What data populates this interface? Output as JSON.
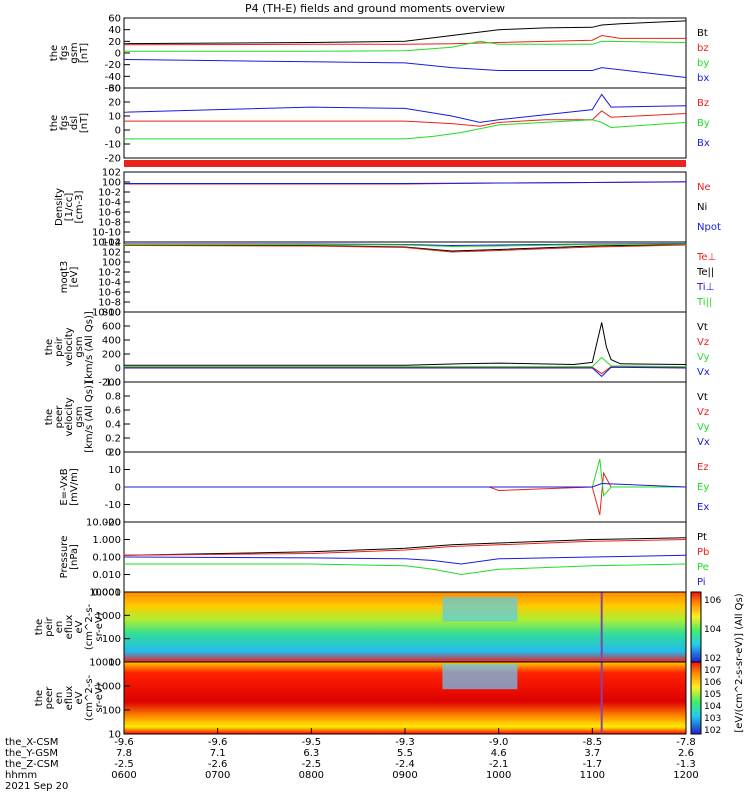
{
  "title": "P4 (TH-E) fields and ground moments overview",
  "date_label": "2021 Sep 20",
  "colors": {
    "black": "#000000",
    "red": "#e8231b",
    "green": "#22dd22",
    "blue": "#1a1adf"
  },
  "time_axis": {
    "ticks": [
      "0600",
      "0700",
      "0800",
      "0900",
      "1000",
      "1100",
      "1200"
    ],
    "rows": [
      {
        "label": "the_X-CSM",
        "values": [
          "-9.6",
          "-9.6",
          "-9.5",
          "-9.3",
          "-9.0",
          "-8.5",
          "-7.8"
        ]
      },
      {
        "label": "the_Y-GSM",
        "values": [
          "7.8",
          "7.1",
          "6.3",
          "5.5",
          "4.6",
          "3.7",
          "2.6"
        ]
      },
      {
        "label": "the_Z-CSM",
        "values": [
          "-2.5",
          "-2.6",
          "-2.5",
          "-2.4",
          "-2.1",
          "-1.7",
          "-1.3"
        ]
      },
      {
        "label": "hhmm",
        "values": [
          "0600",
          "0700",
          "0800",
          "0900",
          "1000",
          "1100",
          "1200"
        ]
      }
    ]
  },
  "colorbar": {
    "label": "[eV/(cm^2-s-sr-eV)] (All Qs)",
    "upper_ticks": [
      "10^6",
      "10^4",
      "10^2"
    ],
    "lower_ticks": [
      "10^7",
      "10^6",
      "10^5",
      "10^4",
      "10^3",
      "10^2"
    ]
  },
  "chart_data": [
    {
      "type": "line",
      "ylabel": [
        "the",
        "fgs",
        "gsm",
        "[nT]"
      ],
      "ylim": [
        -60,
        60
      ],
      "yticks": [
        "60",
        "40",
        "20",
        "0",
        "-20",
        "-40",
        "-60"
      ],
      "legend": [
        "Bt",
        "bz",
        "by",
        "bx"
      ],
      "series": [
        {
          "name": "Bt",
          "color": "black",
          "x": [
            6,
            8,
            9,
            9.5,
            10,
            10.5,
            11,
            11.1,
            11.3,
            12
          ],
          "y": [
            16,
            18,
            20,
            30,
            40,
            43,
            44,
            48,
            50,
            55
          ]
        },
        {
          "name": "bz",
          "color": "red",
          "x": [
            6,
            8,
            9,
            9.5,
            10,
            11,
            11.1,
            11.3,
            12
          ],
          "y": [
            14,
            15,
            15,
            16,
            18,
            22,
            30,
            25,
            25
          ]
        },
        {
          "name": "by",
          "color": "green",
          "x": [
            6,
            8,
            9,
            9.5,
            9.8,
            10,
            11,
            11.1,
            12
          ],
          "y": [
            3,
            3,
            4,
            10,
            20,
            15,
            15,
            20,
            18
          ]
        },
        {
          "name": "bx",
          "color": "blue",
          "x": [
            6,
            7,
            8,
            9,
            9.5,
            10,
            11,
            11.1,
            12
          ],
          "y": [
            -11,
            -13,
            -15,
            -17,
            -25,
            -30,
            -30,
            -25,
            -42
          ]
        }
      ]
    },
    {
      "type": "line",
      "ylabel": [
        "the",
        "fgs",
        "dsl",
        "[nT]"
      ],
      "ylim": [
        -25,
        30
      ],
      "yticks": [
        "30",
        "20",
        "10",
        "0",
        "-10",
        "-20"
      ],
      "legend": [
        "Bz",
        "By",
        "Bx"
      ],
      "series": [
        {
          "name": "Bz",
          "color": "red",
          "x": [
            6,
            8,
            9,
            9.5,
            9.8,
            10,
            10.5,
            11,
            11.1,
            11.2,
            12
          ],
          "y": [
            4,
            4,
            4,
            2,
            0,
            3,
            5,
            5,
            12,
            7,
            10
          ]
        },
        {
          "name": "By",
          "color": "green",
          "x": [
            6,
            8,
            9,
            9.3,
            9.6,
            9.8,
            10,
            11,
            11.1,
            11.2,
            12
          ],
          "y": [
            -10,
            -10,
            -10,
            -8,
            -5,
            -2,
            1,
            5,
            3,
            -1,
            3
          ]
        },
        {
          "name": "Bx",
          "color": "blue",
          "x": [
            6,
            7,
            8,
            9,
            9.5,
            9.8,
            10,
            11,
            11.1,
            11.2,
            12
          ],
          "y": [
            11,
            13,
            15,
            14,
            8,
            3,
            5,
            13,
            25,
            15,
            16
          ]
        }
      ]
    },
    {
      "type": "bar",
      "legend": [],
      "values": [
        1
      ]
    },
    {
      "type": "line",
      "ylabel": [
        "Density",
        "[1/cc]",
        "[cm-3]"
      ],
      "ylim": [
        -12,
        2
      ],
      "log": true,
      "yticks": [
        "10^2",
        "10^0",
        "10^-2",
        "10^-4",
        "10^-6",
        "10^-8",
        "10^-10",
        "10^-12"
      ],
      "legend": [
        "Ne",
        "Ni",
        "Npot"
      ],
      "series": [
        {
          "name": "Ne",
          "color": "red",
          "x": [
            6,
            9,
            10,
            11,
            12
          ],
          "y": [
            -0.4,
            -0.4,
            -0.2,
            -0.1,
            0.0
          ]
        },
        {
          "name": "Npot",
          "color": "blue",
          "x": [
            6,
            9,
            10,
            11,
            12
          ],
          "y": [
            -0.3,
            -0.3,
            -0.2,
            -0.1,
            0.05
          ]
        }
      ]
    },
    {
      "type": "line",
      "ylabel": [
        "moqt3",
        "[eV]"
      ],
      "ylim": [
        -10,
        4
      ],
      "log": true,
      "yticks": [
        "10^4",
        "10^2",
        "10^0",
        "10^-2",
        "10^-4",
        "10^-6",
        "10^-8",
        "10^-10"
      ],
      "legend": [
        "Te⊥",
        "Te||",
        "Ti⊥",
        "Ti||"
      ],
      "series": [
        {
          "name": "Te||",
          "color": "black",
          "x": [
            6,
            8,
            9,
            9.5,
            10,
            11,
            12
          ],
          "y": [
            3.4,
            3.3,
            3.0,
            2.2,
            2.5,
            3.2,
            3.5
          ]
        },
        {
          "name": "Ti⊥",
          "color": "blue",
          "x": [
            6,
            8,
            9,
            9.5,
            10,
            11,
            12
          ],
          "y": [
            3.6,
            3.6,
            3.5,
            3.3,
            3.4,
            3.6,
            3.7
          ]
        },
        {
          "name": "Te⊥",
          "color": "red",
          "x": [
            6,
            8,
            9,
            9.5,
            10,
            11,
            12
          ],
          "y": [
            3.3,
            3.2,
            2.9,
            2.0,
            2.3,
            3.0,
            3.4
          ]
        },
        {
          "name": "Ti||",
          "color": "green",
          "x": [
            6,
            8,
            9,
            9.5,
            10,
            11,
            12
          ],
          "y": [
            3.5,
            3.5,
            3.4,
            3.1,
            3.2,
            3.5,
            3.6
          ]
        }
      ]
    },
    {
      "type": "line",
      "ylabel": [
        "the",
        "peir",
        "velocity",
        "gsm",
        "[km/s (All Qs)]"
      ],
      "ylim": [
        -200,
        800
      ],
      "yticks": [
        "800",
        "600",
        "400",
        "200",
        "0",
        "-200"
      ],
      "legend": [
        "Vt",
        "Vz",
        "Vy",
        "Vx"
      ],
      "series": [
        {
          "name": "Vt",
          "color": "black",
          "x": [
            6,
            9,
            9.6,
            10,
            10.8,
            11,
            11.1,
            11.15,
            11.2,
            11.3,
            12
          ],
          "y": [
            40,
            40,
            60,
            70,
            50,
            80,
            650,
            300,
            120,
            60,
            50
          ]
        },
        {
          "name": "Vz",
          "color": "red",
          "x": [
            6,
            11,
            11.1,
            11.2,
            12
          ],
          "y": [
            10,
            10,
            -80,
            20,
            10
          ]
        },
        {
          "name": "Vy",
          "color": "green",
          "x": [
            6,
            11,
            11.1,
            11.2,
            12
          ],
          "y": [
            20,
            20,
            150,
            30,
            20
          ]
        },
        {
          "name": "Vx",
          "color": "blue",
          "x": [
            6,
            11,
            11.1,
            11.2,
            12
          ],
          "y": [
            0,
            0,
            -120,
            10,
            0
          ]
        }
      ]
    },
    {
      "type": "line",
      "ylabel": [
        "the",
        "peer",
        "velocity",
        "gsm",
        "[km/s (All Qs)]"
      ],
      "ylim": [
        0,
        1
      ],
      "yticks": [
        "1.0",
        "0.8",
        "0.6",
        "0.4",
        "0.2",
        "0.0"
      ],
      "legend": [
        "Vt",
        "Vz",
        "Vy",
        "Vx"
      ],
      "series": []
    },
    {
      "type": "line",
      "ylabel": [
        "E=-VxB",
        "[mV/m]"
      ],
      "ylim": [
        -20,
        20
      ],
      "yticks": [
        "20",
        "10",
        "0",
        "-10",
        "-20"
      ],
      "legend": [
        "Ez",
        "Ey",
        "Ex"
      ],
      "series": [
        {
          "name": "Ez",
          "color": "red",
          "x": [
            6,
            9.9,
            10,
            11,
            11.08,
            11.12,
            11.2,
            12
          ],
          "y": [
            0,
            0,
            -2,
            0,
            -16,
            8,
            0,
            0
          ]
        },
        {
          "name": "Ey",
          "color": "green",
          "x": [
            6,
            11,
            11.08,
            11.12,
            11.2,
            12
          ],
          "y": [
            0,
            0,
            16,
            -5,
            0,
            0
          ]
        },
        {
          "name": "Ex",
          "color": "blue",
          "x": [
            6,
            11,
            11.1,
            12
          ],
          "y": [
            0,
            0,
            2,
            0
          ]
        }
      ]
    },
    {
      "type": "line",
      "ylabel": [
        "Pressure",
        "[nPa]"
      ],
      "ylim": [
        -3,
        1
      ],
      "log": true,
      "yticks": [
        "10.000",
        "1.000",
        "0.100",
        "0.010",
        "0.001"
      ],
      "legend": [
        "Pt",
        "Pb",
        "Pe",
        "Pi"
      ],
      "series": [
        {
          "name": "Pt",
          "color": "black",
          "x": [
            6,
            8,
            9,
            9.5,
            10,
            11,
            12
          ],
          "y": [
            -0.9,
            -0.7,
            -0.5,
            -0.3,
            -0.2,
            0,
            0.1
          ]
        },
        {
          "name": "Pb",
          "color": "red",
          "x": [
            6,
            8,
            9,
            9.5,
            10,
            11,
            12
          ],
          "y": [
            -0.9,
            -0.8,
            -0.6,
            -0.4,
            -0.3,
            -0.1,
            0
          ]
        },
        {
          "name": "Pe",
          "color": "green",
          "x": [
            6,
            8,
            9,
            9.3,
            9.6,
            10,
            11,
            12
          ],
          "y": [
            -1.4,
            -1.4,
            -1.5,
            -1.7,
            -2.0,
            -1.7,
            -1.5,
            -1.4
          ]
        },
        {
          "name": "Pi",
          "color": "blue",
          "x": [
            6,
            8,
            9,
            9.3,
            9.6,
            10,
            11,
            12
          ],
          "y": [
            -1.0,
            -1.05,
            -1.1,
            -1.2,
            -1.4,
            -1.1,
            -1.0,
            -0.9
          ]
        }
      ]
    },
    {
      "type": "heatmap",
      "ylabel": [
        "the",
        "peir",
        "en",
        "eflux",
        "eV",
        "(cm^2-s-",
        "sr-eV)"
      ],
      "yticks": [
        "10000",
        "1000",
        "100",
        "10"
      ],
      "ylim": [
        1,
        4.3
      ],
      "log": true
    },
    {
      "type": "heatmap",
      "ylabel": [
        "the",
        "peer",
        "en",
        "eflux",
        "eV",
        "(cm^2-s-",
        "sr-eV)"
      ],
      "yticks": [
        "10000",
        "1000",
        "100",
        "10"
      ],
      "ylim": [
        1,
        4.3
      ],
      "log": true
    }
  ]
}
